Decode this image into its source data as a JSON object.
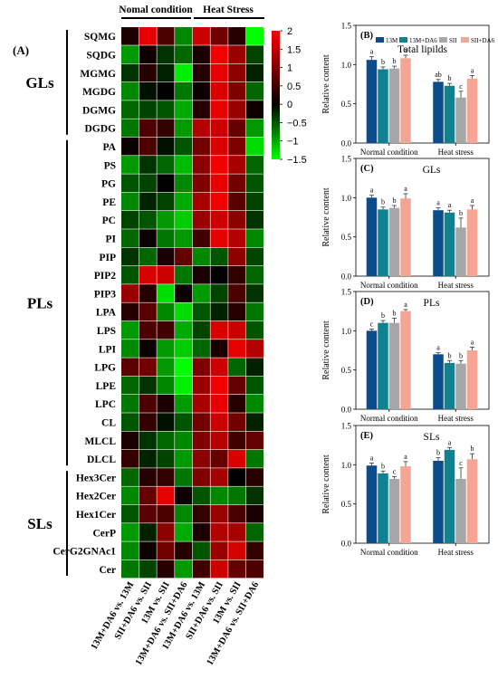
{
  "panel_a_label": "(A)",
  "column_groups": [
    "Nomal condition",
    "Heat Stress"
  ],
  "row_groups": [
    {
      "name": "GLs",
      "rows": [
        "SQMG",
        "SQDG",
        "MGMG",
        "MGDG",
        "DGMG",
        "DGDG"
      ]
    },
    {
      "name": "PLs",
      "rows": [
        "PA",
        "PS",
        "PG",
        "PE",
        "PC",
        "PI",
        "PIP",
        "PIP2",
        "PIP3",
        "LPA",
        "LPS",
        "LPI",
        "LPG",
        "LPE",
        "LPC",
        "CL",
        "MLCL",
        "DLCL"
      ]
    },
    {
      "name": "SLs",
      "rows": [
        "Hex3Cer",
        "Hex2Cer",
        "Hex1Cer",
        "CerP",
        "CerG2GNAc1",
        "Cer"
      ]
    }
  ],
  "columns": [
    "13M+DA6 vs. 13M",
    "SII+DA6 vs. SII",
    "13M vs. SII",
    "13M+DA6 vs. SII+DA6",
    "13M+DA6 vs. 13M",
    "SII+DA6 vs. SII",
    "13M vs. SII",
    "13M+DA6 vs. SII+DA6"
  ],
  "colorbar": {
    "ticks": [
      "2",
      "1.5",
      "1",
      "0.5",
      "0",
      "−0.5",
      "−1",
      "−1.5"
    ],
    "min": -1.5,
    "max": 2,
    "colors": {
      "high": "#ff0000",
      "mid": "#000000",
      "low": "#00ff00"
    }
  },
  "chart_data": [
    {
      "type": "heatmap",
      "title": "",
      "rows": [
        "SQMG",
        "SQDG",
        "MGMG",
        "MGDG",
        "DGMG",
        "DGDG",
        "PA",
        "PS",
        "PG",
        "PE",
        "PC",
        "PI",
        "PIP",
        "PIP2",
        "PIP3",
        "LPA",
        "LPS",
        "LPI",
        "LPG",
        "LPE",
        "LPC",
        "CL",
        "MLCL",
        "DLCL",
        "Hex3Cer",
        "Hex2Cer",
        "Hex1Cer",
        "CerP",
        "CerG2GNAc1",
        "Cer"
      ],
      "columns": [
        "13M+DA6 vs. 13M",
        "SII+DA6 vs. SII",
        "13M vs. SII",
        "13M+DA6 vs. SII+DA6",
        "13M+DA6 vs. 13M",
        "SII+DA6 vs. SII",
        "13M vs. SII",
        "13M+DA6 vs. SII+DA6"
      ],
      "values": [
        [
          0.2,
          1.8,
          0.6,
          -0.8,
          1.6,
          0.9,
          0.3,
          -1.5
        ],
        [
          -0.9,
          0.1,
          -0.3,
          -0.6,
          0.2,
          1.9,
          1.2,
          -0.4
        ],
        [
          -0.3,
          0.3,
          -0.2,
          -1.4,
          0.3,
          1.8,
          1.1,
          -0.2
        ],
        [
          -0.8,
          -0.1,
          0.0,
          -0.7,
          0.1,
          1.7,
          1.0,
          -0.6
        ],
        [
          -0.6,
          -0.4,
          -0.5,
          -1.0,
          0.3,
          1.8,
          1.2,
          0.1
        ],
        [
          -0.7,
          0.6,
          0.4,
          -0.9,
          1.4,
          1.6,
          0.8,
          -0.9
        ],
        [
          0.1,
          0.6,
          -0.1,
          -0.5,
          0.9,
          1.7,
          1.0,
          -1.3
        ],
        [
          -0.9,
          -0.3,
          -0.6,
          -1.1,
          1.1,
          1.9,
          1.3,
          -0.6
        ],
        [
          -0.5,
          -0.4,
          0.0,
          -0.8,
          1.0,
          1.8,
          0.9,
          -0.5
        ],
        [
          -0.8,
          -0.2,
          -0.4,
          -1.0,
          1.3,
          1.9,
          0.7,
          -0.4
        ],
        [
          -0.4,
          -0.5,
          -0.9,
          -1.2,
          1.2,
          1.6,
          1.1,
          -0.3
        ],
        [
          -0.6,
          0.1,
          -0.7,
          -0.9,
          0.5,
          1.8,
          1.4,
          -0.8
        ],
        [
          -0.3,
          -0.6,
          0.2,
          0.8,
          -0.8,
          -0.5,
          1.1,
          -0.4
        ],
        [
          -0.5,
          1.7,
          1.6,
          -0.7,
          0.2,
          0.0,
          0.4,
          -0.6
        ],
        [
          1.2,
          0.3,
          -1.3,
          0.1,
          -0.9,
          -0.4,
          0.6,
          -0.3
        ],
        [
          0.3,
          0.7,
          -0.8,
          -1.3,
          -0.5,
          -0.2,
          0.3,
          -0.7
        ],
        [
          -0.9,
          0.6,
          0.5,
          -1.0,
          -0.4,
          1.7,
          1.6,
          -0.5
        ],
        [
          -0.8,
          0.1,
          -0.9,
          -1.2,
          -0.6,
          0.2,
          1.8,
          1.4
        ],
        [
          0.7,
          0.9,
          -0.9,
          -1.5,
          1.0,
          1.6,
          -0.6,
          -0.2
        ],
        [
          -0.6,
          -0.3,
          -0.8,
          -1.4,
          1.2,
          1.9,
          0.8,
          -0.5
        ],
        [
          -0.7,
          0.6,
          0.2,
          -0.9,
          1.3,
          1.8,
          0.3,
          -0.8
        ],
        [
          -0.5,
          0.4,
          -0.1,
          -0.5,
          0.9,
          1.6,
          0.9,
          -0.2
        ],
        [
          0.2,
          -0.3,
          -0.6,
          -0.8,
          1.0,
          1.4,
          0.5,
          0.8
        ],
        [
          0.4,
          -0.2,
          -0.4,
          -0.9,
          1.1,
          0.8,
          1.7,
          -0.7
        ],
        [
          -0.6,
          0.3,
          0.4,
          -0.7,
          1.0,
          1.3,
          0.0,
          0.3
        ],
        [
          -0.8,
          0.8,
          1.8,
          0.1,
          -0.5,
          -0.8,
          -0.7,
          -0.3
        ],
        [
          -0.5,
          0.7,
          0.6,
          -0.8,
          0.4,
          1.2,
          0.6,
          0.2
        ],
        [
          -0.9,
          -0.2,
          1.1,
          -1.0,
          0.2,
          1.4,
          1.3,
          -0.6
        ],
        [
          -0.8,
          0.1,
          0.9,
          0.3,
          -0.5,
          1.2,
          1.7,
          0.4
        ],
        [
          -0.7,
          -0.4,
          0.3,
          -0.9,
          0.5,
          1.6,
          0.8,
          0.6
        ]
      ]
    },
    {
      "type": "bar",
      "panel": "(B)",
      "title": "Total lipilds",
      "categories": [
        "Normal condition",
        "Heat stress"
      ],
      "ylabel": "Relative content",
      "ylim": [
        0,
        1.5
      ],
      "yticks": [
        "0.0",
        "0.5",
        "1.0",
        "1.5"
      ],
      "series": [
        {
          "name": "13M",
          "color": "#0b4c8c",
          "values": [
            1.06,
            0.78
          ],
          "errors": [
            0.04,
            0.03
          ],
          "letters": [
            "a",
            "ab"
          ]
        },
        {
          "name": "13M+DA6",
          "color": "#0f8291",
          "values": [
            0.94,
            0.73
          ],
          "errors": [
            0.03,
            0.03
          ],
          "letters": [
            "b",
            "b"
          ]
        },
        {
          "name": "SII",
          "color": "#a7a7a7",
          "values": [
            0.95,
            0.58
          ],
          "errors": [
            0.03,
            0.08
          ],
          "letters": [
            "b",
            "c"
          ]
        },
        {
          "name": "SII+DA6",
          "color": "#f5a596",
          "values": [
            1.08,
            0.82
          ],
          "errors": [
            0.04,
            0.04
          ],
          "letters": [
            "a",
            "a"
          ]
        }
      ]
    },
    {
      "type": "bar",
      "panel": "(C)",
      "title": "GLs",
      "categories": [
        "Normal condition",
        "Heat stress"
      ],
      "ylabel": "Relative content",
      "ylim": [
        0,
        1.5
      ],
      "yticks": [
        "0.0",
        "0.5",
        "1.0",
        "1.5"
      ],
      "series": [
        {
          "name": "13M",
          "color": "#0b4c8c",
          "values": [
            1.0,
            0.84
          ],
          "errors": [
            0.03,
            0.03
          ],
          "letters": [
            "a",
            "a"
          ]
        },
        {
          "name": "13M+DA6",
          "color": "#0f8291",
          "values": [
            0.85,
            0.81
          ],
          "errors": [
            0.03,
            0.03
          ],
          "letters": [
            "b",
            "a"
          ]
        },
        {
          "name": "SII",
          "color": "#a7a7a7",
          "values": [
            0.87,
            0.62
          ],
          "errors": [
            0.03,
            0.12
          ],
          "letters": [
            "b",
            "b"
          ]
        },
        {
          "name": "SII+DA6",
          "color": "#f5a596",
          "values": [
            0.99,
            0.85
          ],
          "errors": [
            0.06,
            0.05
          ],
          "letters": [
            "a",
            "a"
          ]
        }
      ]
    },
    {
      "type": "bar",
      "panel": "(D)",
      "title": "PLs",
      "categories": [
        "Normal condition",
        "Heat stress"
      ],
      "ylabel": "Relative content",
      "ylim": [
        0,
        1.5
      ],
      "yticks": [
        "0.0",
        "0.5",
        "1.0",
        "1.5"
      ],
      "series": [
        {
          "name": "13M",
          "color": "#0b4c8c",
          "values": [
            1.0,
            0.7
          ],
          "errors": [
            0.02,
            0.02
          ],
          "letters": [
            "c",
            "a"
          ]
        },
        {
          "name": "13M+DA6",
          "color": "#0f8291",
          "values": [
            1.1,
            0.59
          ],
          "errors": [
            0.03,
            0.03
          ],
          "letters": [
            "b",
            "b"
          ]
        },
        {
          "name": "SII",
          "color": "#a7a7a7",
          "values": [
            1.1,
            0.58
          ],
          "errors": [
            0.06,
            0.04
          ],
          "letters": [
            "b",
            "b"
          ]
        },
        {
          "name": "SII+DA6",
          "color": "#f5a596",
          "values": [
            1.25,
            0.75
          ],
          "errors": [
            0.02,
            0.04
          ],
          "letters": [
            "a",
            "a"
          ]
        }
      ]
    },
    {
      "type": "bar",
      "panel": "(E)",
      "title": "SLs",
      "categories": [
        "Normal condition",
        "Heat stress"
      ],
      "ylabel": "Relative content",
      "ylim": [
        0,
        1.5
      ],
      "yticks": [
        "0.0",
        "0.5",
        "1.0",
        "1.5"
      ],
      "series": [
        {
          "name": "13M",
          "color": "#0b4c8c",
          "values": [
            0.99,
            1.05
          ],
          "errors": [
            0.03,
            0.04
          ],
          "letters": [
            "a",
            "b"
          ]
        },
        {
          "name": "13M+DA6",
          "color": "#0f8291",
          "values": [
            0.89,
            1.19
          ],
          "errors": [
            0.03,
            0.03
          ],
          "letters": [
            "b",
            "a"
          ]
        },
        {
          "name": "SII",
          "color": "#a7a7a7",
          "values": [
            0.82,
            0.82
          ],
          "errors": [
            0.03,
            0.14
          ],
          "letters": [
            "c",
            "c"
          ]
        },
        {
          "name": "SII+DA6",
          "color": "#f5a596",
          "values": [
            0.98,
            1.07
          ],
          "errors": [
            0.06,
            0.07
          ],
          "letters": [
            "a",
            "b"
          ]
        }
      ]
    }
  ]
}
